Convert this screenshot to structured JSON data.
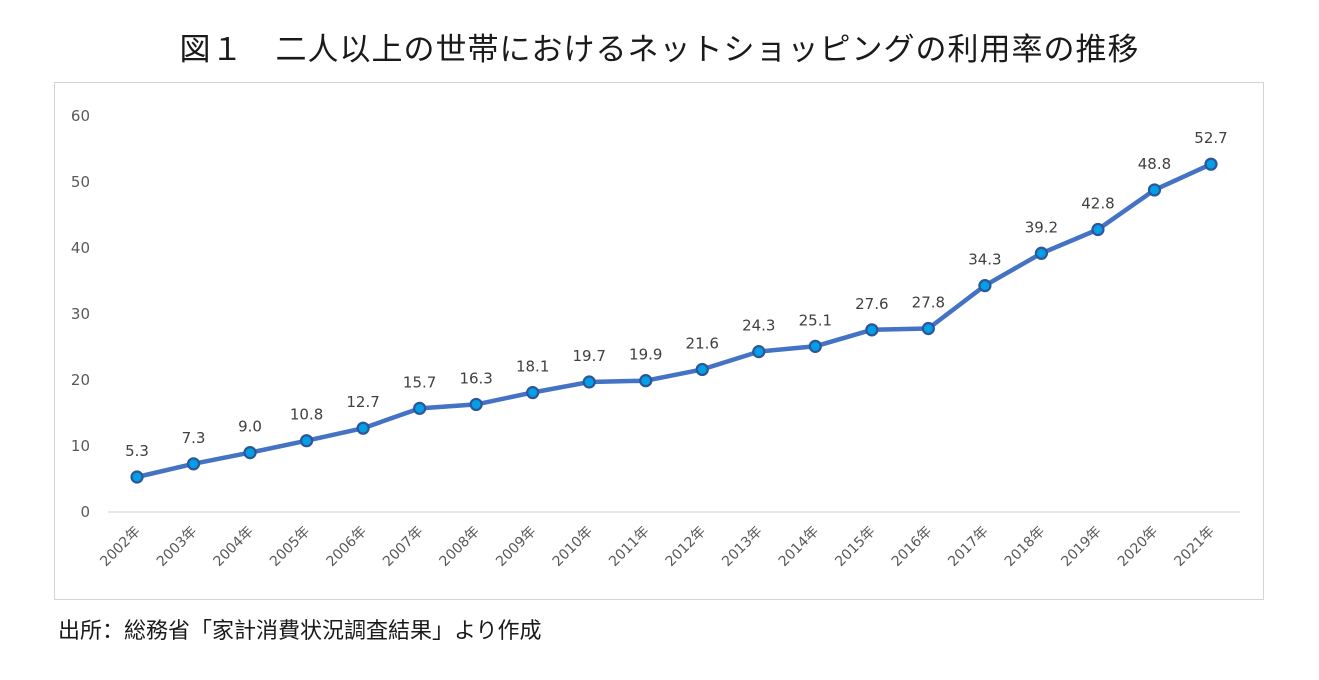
{
  "header": {
    "title": "図１　二人以上の世帯におけるネットショッピングの利用率の推移"
  },
  "footer": {
    "source": "出所：総務省「家計消費状況調査結果」より作成"
  },
  "colors": {
    "line": "#4472c4",
    "marker_fill": "#00a0e9",
    "marker_edge": "#2f5597",
    "axis": "#d9d9d9",
    "text": "#595959"
  },
  "chart_data": {
    "type": "line",
    "title": "",
    "xlabel": "",
    "ylabel": "",
    "categories": [
      "2002年",
      "2003年",
      "2004年",
      "2005年",
      "2006年",
      "2007年",
      "2008年",
      "2009年",
      "2010年",
      "2011年",
      "2012年",
      "2013年",
      "2014年",
      "2015年",
      "2016年",
      "2017年",
      "2018年",
      "2019年",
      "2020年",
      "2021年"
    ],
    "series": [
      {
        "values": [
          5.3,
          7.3,
          9.0,
          10.8,
          12.7,
          15.7,
          16.3,
          18.1,
          19.7,
          19.9,
          21.6,
          24.3,
          25.1,
          27.6,
          27.8,
          34.3,
          39.2,
          42.8,
          48.8,
          52.7
        ],
        "labels": [
          "5.3",
          "7.3",
          "9.0",
          "10.8",
          "12.7",
          "15.7",
          "16.3",
          "18.1",
          "19.7",
          "19.9",
          "21.6",
          "24.3",
          "25.1",
          "27.6",
          "27.8",
          "34.3",
          "39.2",
          "42.8",
          "48.8",
          "52.7"
        ]
      }
    ],
    "ylim": [
      0,
      60
    ],
    "yticks": [
      0,
      10,
      20,
      30,
      40,
      50,
      60
    ],
    "grid": false,
    "legend": "none",
    "data_labels": "above"
  }
}
